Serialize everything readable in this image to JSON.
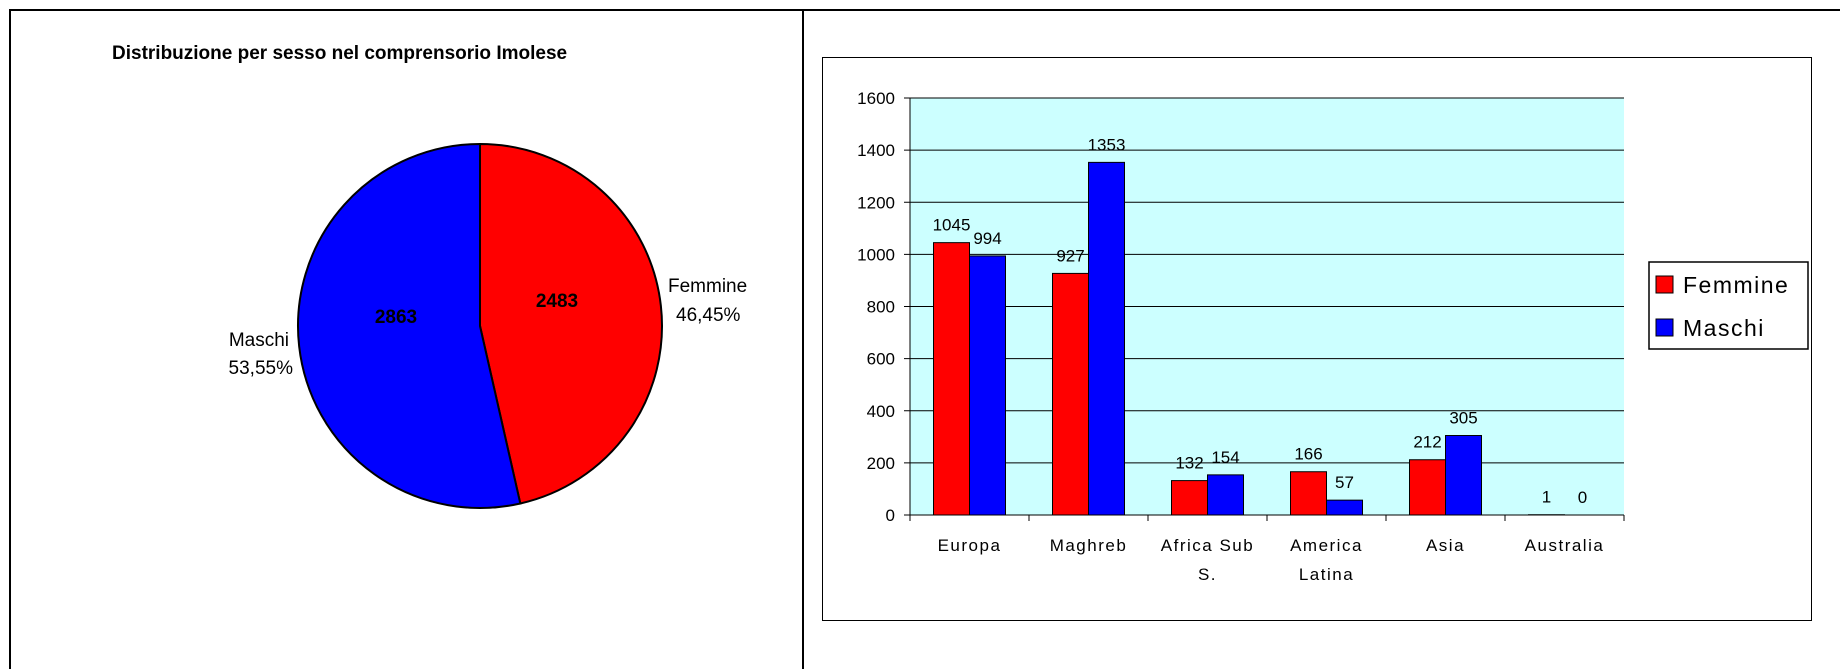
{
  "colors": {
    "femmine": "#ff0000",
    "maschi": "#0000ff",
    "plot_bg": "#ccffff"
  },
  "chart_data": [
    {
      "type": "pie",
      "title": "Distribuzione per sesso nel comprensorio Imolese",
      "slices": [
        {
          "name": "Femmine",
          "value": 2483,
          "percent_label": "46,45%",
          "value_label": "2483",
          "color": "#ff0000"
        },
        {
          "name": "Maschi",
          "value": 2863,
          "percent_label": "53,55%",
          "value_label": "2863",
          "color": "#0000ff"
        }
      ]
    },
    {
      "type": "bar",
      "title": "",
      "xlabel": "",
      "ylabel": "",
      "ylim": [
        0,
        1600
      ],
      "yticks": [
        "0",
        "200",
        "400",
        "600",
        "800",
        "1000",
        "1200",
        "1400",
        "1600"
      ],
      "grid": true,
      "legend_position": "right",
      "categories": [
        [
          "Europa"
        ],
        [
          "Maghreb"
        ],
        [
          "Africa Sub",
          "S."
        ],
        [
          "America",
          "Latina"
        ],
        [
          "Asia"
        ],
        [
          "Australia"
        ]
      ],
      "series": [
        {
          "name": "Femmine",
          "color": "#ff0000",
          "values": [
            1045,
            927,
            132,
            166,
            212,
            1
          ]
        },
        {
          "name": "Maschi",
          "color": "#0000ff",
          "values": [
            994,
            1353,
            154,
            57,
            305,
            0
          ]
        }
      ]
    }
  ]
}
